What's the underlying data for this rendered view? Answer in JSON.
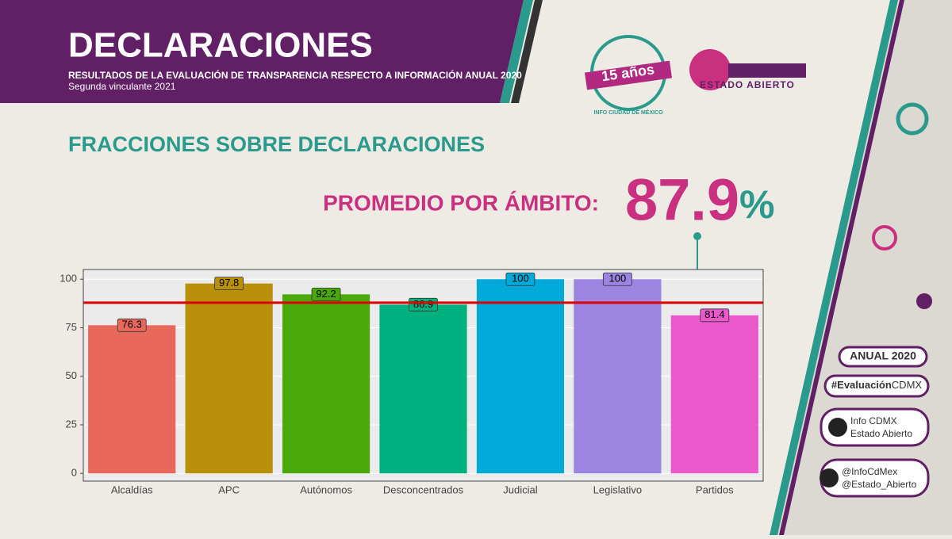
{
  "header": {
    "title": "DECLARACIONES",
    "subtitle": "RESULTADOS DE LA EVALUACIÓN DE TRANSPARENCIA RESPECTO A INFORMACIÓN ANUAL 2020",
    "note": "Segunda vinculante 2021"
  },
  "logos": {
    "anniversary": "15 años",
    "anniversary_ring": "INFO CIUDAD DE MÉXICO",
    "estado_abierto": "ESTADO ABIERTO"
  },
  "section_title": "FRACCIONES SOBRE DECLARACIONES",
  "sidebar": {
    "year": "ANUAL 2020",
    "hashtag_bold": "#Evaluación",
    "hashtag_rest": "CDMX",
    "facebook": [
      "Info CDMX",
      "Estado Abierto"
    ],
    "twitter": [
      "@InfoCdMex",
      "@Estado_Abierto"
    ]
  },
  "chart_data": {
    "type": "bar",
    "average": {
      "label": "PROMEDIO POR ÁMBITO:",
      "value": 87.9,
      "value_label": "87.9",
      "unit": "%",
      "color": "#dd0000"
    },
    "categories": [
      "Alcaldías",
      "APC",
      "Autónomos",
      "Desconcentrados",
      "Judicial",
      "Legislativo",
      "Partidos"
    ],
    "values": [
      76.3,
      97.8,
      92.2,
      86.9,
      100,
      100,
      81.4
    ],
    "colors": [
      "#e8695c",
      "#b8900a",
      "#4aa80a",
      "#00b07f",
      "#00aad8",
      "#9b85e0",
      "#ea58cc"
    ],
    "ylim": [
      -4,
      105
    ],
    "yticks": [
      0,
      25,
      50,
      75,
      100
    ],
    "grid": true
  }
}
